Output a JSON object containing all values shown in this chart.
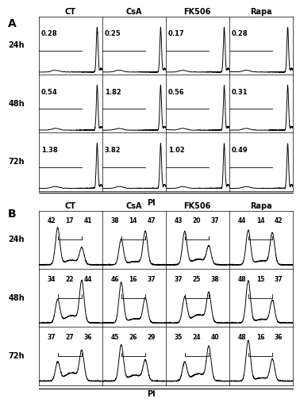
{
  "panel_A_labels": [
    "CT",
    "CsA",
    "FK506",
    "Rapa"
  ],
  "panel_A_timepoints": [
    "24h",
    "48h",
    "72h"
  ],
  "panel_A_values": [
    [
      "0.28",
      "0.25",
      "0.17",
      "0.28"
    ],
    [
      "0.54",
      "1.82",
      "0.56",
      "0.31"
    ],
    [
      "1.38",
      "3.82",
      "1.02",
      "0.49"
    ]
  ],
  "panel_B_labels": [
    "CT",
    "CsA",
    "FK506",
    "Rapa"
  ],
  "panel_B_timepoints": [
    "24h",
    "48h",
    "72h"
  ],
  "panel_B_values": [
    [
      [
        "42",
        "17",
        "41"
      ],
      [
        "38",
        "14",
        "47"
      ],
      [
        "43",
        "20",
        "37"
      ],
      [
        "44",
        "14",
        "42"
      ]
    ],
    [
      [
        "34",
        "22",
        "44"
      ],
      [
        "46",
        "16",
        "37"
      ],
      [
        "37",
        "25",
        "38"
      ],
      [
        "48",
        "15",
        "37"
      ]
    ],
    [
      [
        "37",
        "27",
        "36"
      ],
      [
        "45",
        "26",
        "29"
      ],
      [
        "35",
        "24",
        "40"
      ],
      [
        "48",
        "16",
        "36"
      ]
    ]
  ],
  "bg_color": "#ffffff",
  "line_color": "#000000",
  "font_size_value_A": 6.0,
  "font_size_header": 7.0,
  "font_size_timepoint": 7.0,
  "font_size_panel_label": 10.0,
  "font_size_value_B": 5.5,
  "font_size_pi": 7.0
}
